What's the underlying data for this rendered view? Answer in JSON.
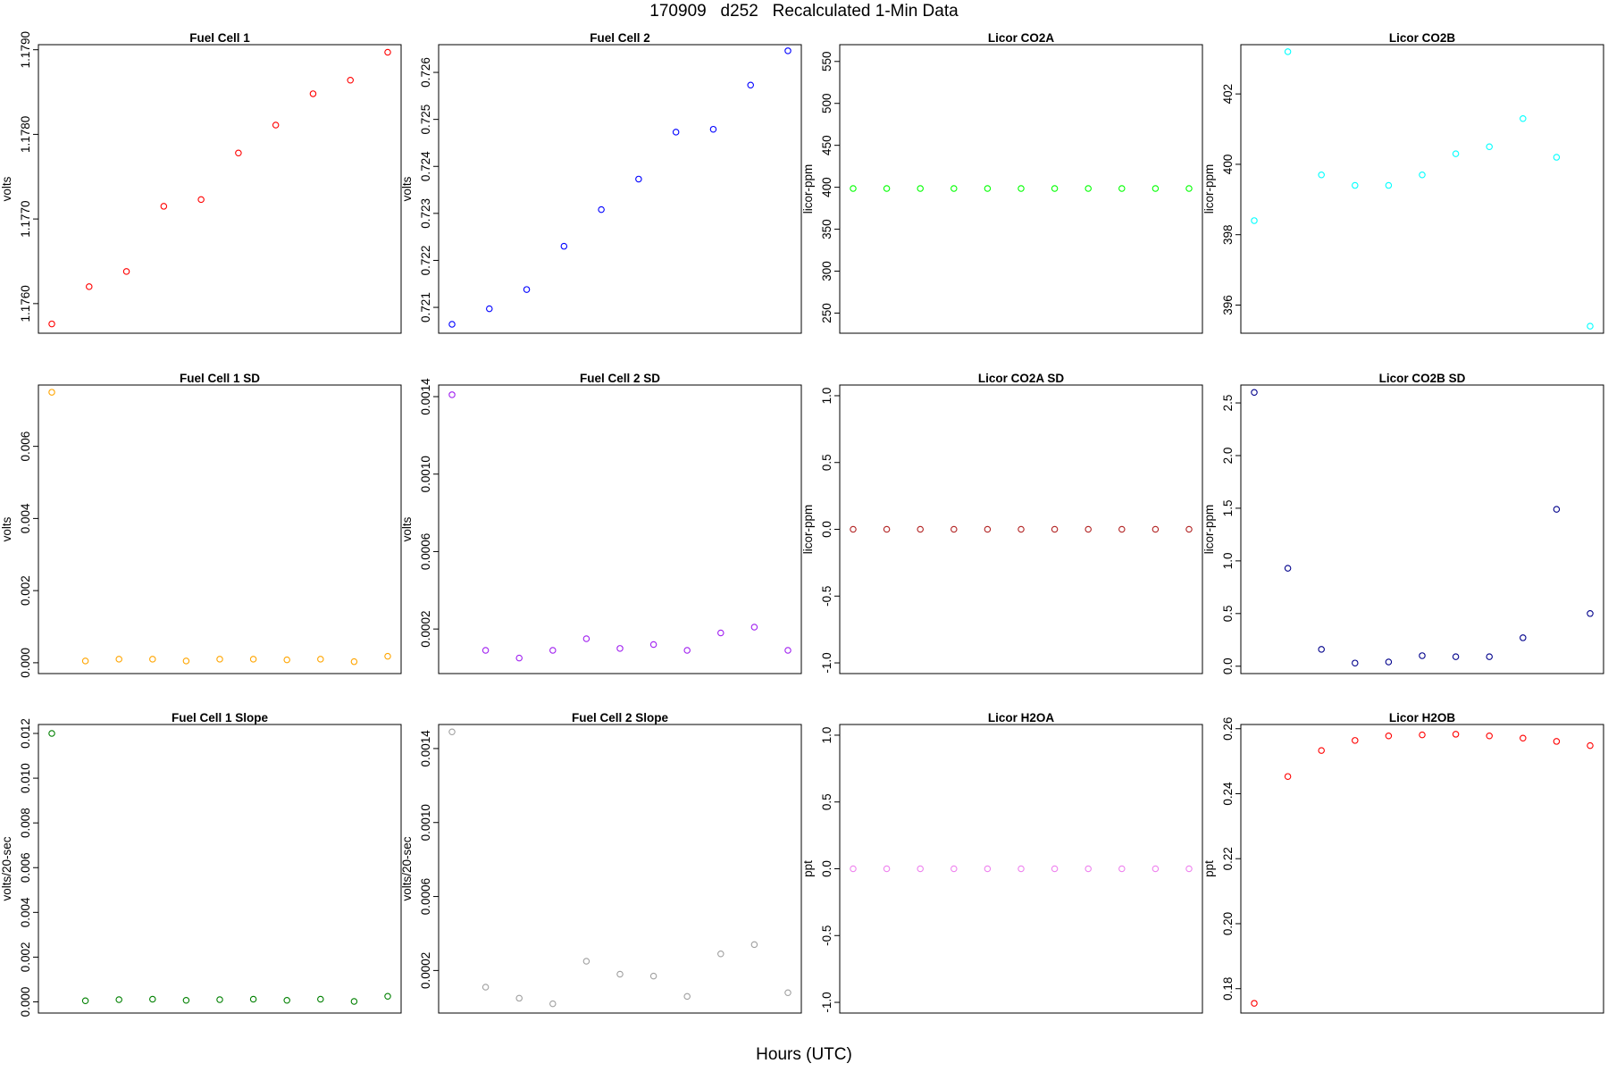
{
  "page": {
    "title": "170909   d252   Recalculated 1-Min Data",
    "xlabel": "Hours (UTC)"
  },
  "chart_data": [
    {
      "type": "scatter",
      "title": "Fuel Cell 1",
      "ylabel": "volts",
      "color": "#ff0000",
      "ylim": [
        1.17565,
        1.17906
      ],
      "yticks": [
        1.176,
        1.177,
        1.178,
        1.179
      ],
      "ytick_labels": [
        "1.1760",
        "1.1770",
        "1.1780",
        "1.1790"
      ],
      "y": [
        1.17576,
        1.1762,
        1.17638,
        1.17715,
        1.17723,
        1.17778,
        1.17811,
        1.17848,
        1.17864,
        1.17897
      ]
    },
    {
      "type": "scatter",
      "title": "Fuel Cell 2",
      "ylabel": "volts",
      "color": "#0000ff",
      "ylim": [
        0.72045,
        0.72659
      ],
      "yticks": [
        0.721,
        0.722,
        0.723,
        0.724,
        0.725,
        0.726
      ],
      "ytick_labels": [
        "0.721",
        "0.722",
        "0.723",
        "0.724",
        "0.725",
        "0.726"
      ],
      "y": [
        0.72064,
        0.72097,
        0.72138,
        0.7223,
        0.72308,
        0.72373,
        0.72473,
        0.72479,
        0.72573,
        0.72646
      ]
    },
    {
      "type": "scatter",
      "title": "Licor CO2A",
      "ylabel": "licor-ppm",
      "color": "#00ff00",
      "ylim": [
        226,
        570
      ],
      "yticks": [
        250,
        300,
        350,
        400,
        450,
        500,
        550
      ],
      "ytick_labels": [
        "250",
        "300",
        "350",
        "400",
        "450",
        "500",
        "550"
      ],
      "y": [
        398.5,
        398.5,
        398.5,
        398.5,
        398.5,
        398.5,
        398.5,
        398.5,
        398.5,
        398.5,
        398.5
      ]
    },
    {
      "type": "scatter",
      "title": "Licor CO2B",
      "ylabel": "licor-ppm",
      "color": "#00ffff",
      "ylim": [
        395.2,
        403.4
      ],
      "yticks": [
        396,
        398,
        400,
        402
      ],
      "ytick_labels": [
        "396",
        "398",
        "400",
        "402"
      ],
      "y": [
        398.4,
        403.2,
        399.7,
        399.4,
        399.4,
        399.7,
        400.3,
        400.5,
        401.3,
        400.2,
        395.4
      ]
    },
    {
      "type": "scatter",
      "title": "Fuel Cell 1 SD",
      "ylabel": "volts",
      "color": "#ffa500",
      "ylim": [
        -0.0003,
        0.0077
      ],
      "yticks": [
        0,
        0.002,
        0.004,
        0.006
      ],
      "ytick_labels": [
        "0.000",
        "0.002",
        "0.004",
        "0.006"
      ],
      "y": [
        0.0075,
        5e-05,
        0.0001,
        0.0001,
        5e-05,
        0.0001,
        0.0001,
        8e-05,
        0.0001,
        3e-05,
        0.00018
      ]
    },
    {
      "type": "scatter",
      "title": "Fuel Cell 2 SD",
      "ylabel": "volts",
      "color": "#a020f0",
      "ylim": [
        -3e-05,
        0.00146
      ],
      "yticks": [
        0.0002,
        0.0006,
        0.001,
        0.0014
      ],
      "ytick_labels": [
        "0.0002",
        "0.0006",
        "0.0010",
        "0.0014"
      ],
      "y": [
        0.00141,
        9e-05,
        5e-05,
        9e-05,
        0.00015,
        0.0001,
        0.00012,
        9e-05,
        0.00018,
        0.00021,
        9e-05
      ]
    },
    {
      "type": "scatter",
      "title": "Licor CO2A SD",
      "ylabel": "licor-ppm",
      "color": "#b22222",
      "ylim": [
        -1.08,
        1.08
      ],
      "yticks": [
        -1,
        -0.5,
        0,
        0.5,
        1
      ],
      "ytick_labels": [
        "-1.0",
        "-0.5",
        "0.0",
        "0.5",
        "1.0"
      ],
      "y": [
        0,
        0,
        0,
        0,
        0,
        0,
        0,
        0,
        0,
        0,
        0
      ]
    },
    {
      "type": "scatter",
      "title": "Licor CO2B SD",
      "ylabel": "licor-ppm",
      "color": "#00008b",
      "ylim": [
        -0.07,
        2.67
      ],
      "yticks": [
        0,
        0.5,
        1,
        1.5,
        2,
        2.5
      ],
      "ytick_labels": [
        "0.0",
        "0.5",
        "1.0",
        "1.5",
        "2.0",
        "2.5"
      ],
      "y": [
        2.6,
        0.93,
        0.16,
        0.03,
        0.04,
        0.1,
        0.09,
        0.09,
        0.27,
        1.49,
        0.5
      ]
    },
    {
      "type": "scatter",
      "title": "Fuel Cell 1 Slope",
      "ylabel": "volts/20-sec",
      "color": "#008000",
      "ylim": [
        -0.0005,
        0.0124
      ],
      "yticks": [
        0,
        0.002,
        0.004,
        0.006,
        0.008,
        0.01,
        0.012
      ],
      "ytick_labels": [
        "0.000",
        "0.002",
        "0.004",
        "0.006",
        "0.008",
        "0.010",
        "0.012"
      ],
      "y": [
        0.012,
        5e-05,
        0.0001,
        0.00012,
        7e-05,
        0.0001,
        0.00012,
        7e-05,
        0.00012,
        2e-05,
        0.00025
      ]
    },
    {
      "type": "scatter",
      "title": "Fuel Cell 2 Slope",
      "ylabel": "volts/20-sec",
      "color": "#a0a0a0",
      "ylim": [
        -3e-05,
        0.00153
      ],
      "yticks": [
        0.0002,
        0.0006,
        0.001,
        0.0014
      ],
      "ytick_labels": [
        "0.0002",
        "0.0006",
        "0.0010",
        "0.0014"
      ],
      "y": [
        0.00149,
        0.00011,
        5e-05,
        2e-05,
        0.00025,
        0.00018,
        0.00017,
        6e-05,
        0.00029,
        0.00034,
        8e-05
      ]
    },
    {
      "type": "scatter",
      "title": "Licor H2OA",
      "ylabel": "ppt",
      "color": "#ee82ee",
      "ylim": [
        -1.08,
        1.08
      ],
      "yticks": [
        -1,
        -0.5,
        0,
        0.5,
        1
      ],
      "ytick_labels": [
        "-1.0",
        "-0.5",
        "0.0",
        "0.5",
        "1.0"
      ],
      "y": [
        0,
        0,
        0,
        0,
        0,
        0,
        0,
        0,
        0,
        0,
        0
      ]
    },
    {
      "type": "scatter",
      "title": "Licor H2OB",
      "ylabel": "ppt",
      "color": "#ff0000",
      "ylim": [
        0.1725,
        0.2613
      ],
      "yticks": [
        0.18,
        0.2,
        0.22,
        0.24,
        0.26
      ],
      "ytick_labels": [
        "0.18",
        "0.20",
        "0.22",
        "0.24",
        "0.26"
      ],
      "y": [
        0.1755,
        0.2453,
        0.2533,
        0.2564,
        0.2578,
        0.2581,
        0.2583,
        0.2578,
        0.2571,
        0.2561,
        0.2548
      ]
    }
  ]
}
